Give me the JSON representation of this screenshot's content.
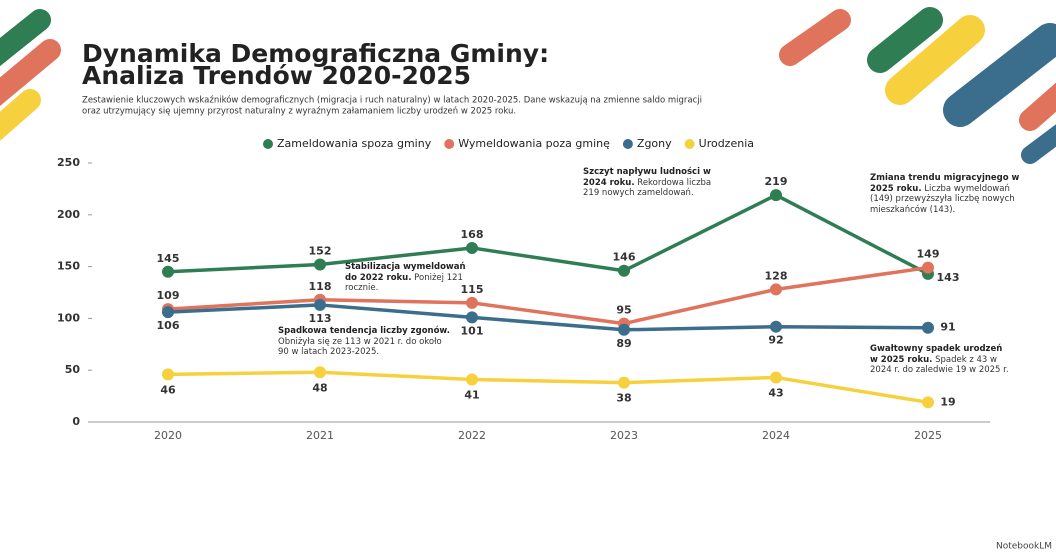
{
  "chart_data": {
    "type": "line",
    "title": "Dynamika Demograficzna Gminy:",
    "title_line2": "Analiza Trendów 2020-2025",
    "subtitle": "Zestawienie kluczowych wskaźników demograficznych (migracja i ruch naturalny) w latach 2020-2025. Dane wskazują na zmienne saldo migracji",
    "subtitle_line2": "oraz utrzymujący się ujemny przyrost naturalny z wyraźnym załamaniem liczby urodzeń w 2025 roku.",
    "categories": [
      "2020",
      "2021",
      "2022",
      "2023",
      "2024",
      "2025"
    ],
    "series": [
      {
        "name": "Zameldowania spoza gminy",
        "color": "#2f7d52",
        "values": [
          145,
          152,
          168,
          146,
          219,
          143
        ]
      },
      {
        "name": "Wymeldowania poza gminę",
        "color": "#e0735c",
        "values": [
          109,
          118,
          115,
          95,
          128,
          149
        ]
      },
      {
        "name": "Zgony",
        "color": "#3b6d8c",
        "values": [
          106,
          113,
          101,
          89,
          92,
          91
        ]
      },
      {
        "name": "Urodzenia",
        "color": "#f6d13d",
        "values": [
          46,
          48,
          41,
          38,
          43,
          19
        ]
      }
    ],
    "ylim": [
      0,
      250
    ],
    "yticks": [
      0,
      50,
      100,
      150,
      200,
      250
    ],
    "grid": false,
    "annotations": [
      {
        "bold": "Szczyt napływu ludności w 2024 roku.",
        "text": "Rekordowa liczba 219 nowych zameldowań."
      },
      {
        "bold": "Zmiana trendu migracyjnego w 2025 roku.",
        "text": "Liczba wymeldowań (149) przewyższyła liczbę nowych mieszkańców (143)."
      },
      {
        "bold": "Stabilizacja wymeldowań do 2022 roku.",
        "text": "Poniżej 121 rocznie."
      },
      {
        "bold": "Spadkowa tendencja liczby zgonów.",
        "text": "Obniżyła się ze 113 w 2021 r. do około 90 w latach 2023-2025."
      },
      {
        "bold": "Gwałtowny spadek urodzeń w 2025 roku.",
        "text": "Spadek z 43 w 2024 r. do zaledwie 19 w 2025 r."
      }
    ],
    "footer": "NotebookLM"
  }
}
